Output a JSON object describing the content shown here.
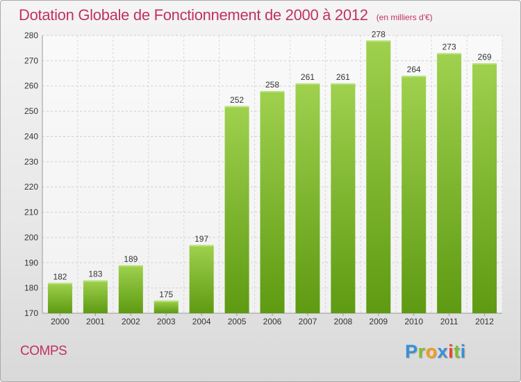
{
  "header": {
    "title": "Dotation Globale de Fonctionnement de 2000 à 2012",
    "unit": "(en milliers d'€)"
  },
  "footer": {
    "commune": "COMPS",
    "logo_letters": [
      {
        "char": "P",
        "color": "#3a8fd6"
      },
      {
        "char": "r",
        "color": "#7bbf2e"
      },
      {
        "char": "o",
        "color": "#f39c1e"
      },
      {
        "char": "x",
        "color": "#3a8fd6"
      },
      {
        "char": "i",
        "color": "#e8432f"
      },
      {
        "char": "t",
        "color": "#7bbf2e"
      },
      {
        "char": "i",
        "color": "#3a8fd6"
      }
    ]
  },
  "chart_data": {
    "type": "bar",
    "title": "Dotation Globale de Fonctionnement de 2000 à 2012",
    "xlabel": "",
    "ylabel": "",
    "categories": [
      "2000",
      "2001",
      "2002",
      "2003",
      "2004",
      "2005",
      "2006",
      "2007",
      "2008",
      "2009",
      "2010",
      "2011",
      "2012"
    ],
    "values": [
      182,
      183,
      189,
      175,
      197,
      252,
      258,
      261,
      261,
      278,
      264,
      273,
      269
    ],
    "ylim": [
      170,
      280
    ],
    "yticks": [
      170,
      180,
      190,
      200,
      210,
      220,
      230,
      240,
      250,
      260,
      270,
      280
    ],
    "grid": true,
    "bar_color_top": "#9fd14e",
    "bar_color_bottom": "#5e9a12",
    "text_color": "#333333"
  }
}
